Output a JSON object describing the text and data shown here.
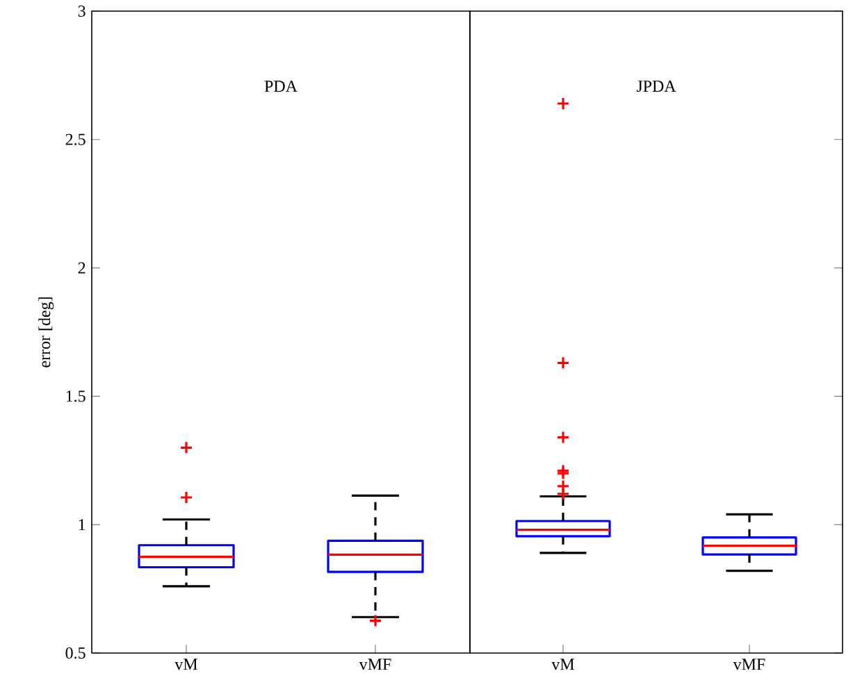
{
  "chart_data": [
    {
      "type": "box",
      "title": "PDA",
      "ylabel": "error [deg]",
      "categories": [
        "vM",
        "vMF"
      ],
      "color": "#0000ff",
      "ylim": [
        0.5,
        3
      ],
      "yticks": [
        0.5,
        1,
        1.5,
        2,
        2.5,
        3
      ],
      "boxes": [
        {
          "low": 0.76,
          "q1": 0.834,
          "median": 0.875,
          "q3": 0.92,
          "high": 1.02,
          "outliers": [
            1.3,
            1.106
          ]
        },
        {
          "low": 0.64,
          "q1": 0.816,
          "median": 0.883,
          "q3": 0.937,
          "high": 1.113,
          "outliers": [
            0.626
          ]
        }
      ]
    },
    {
      "type": "box",
      "title": "JPDA",
      "categories": [
        "vM",
        "vMF"
      ],
      "color": "#0000ff",
      "ylim": [
        0.5,
        3
      ],
      "yticks": [
        0.5,
        1,
        1.5,
        2,
        2.5,
        3
      ],
      "tick_labels": "x",
      "boxes": [
        {
          "low": 0.89,
          "q1": 0.955,
          "median": 0.98,
          "q3": 1.014,
          "high": 1.11,
          "outliers": [
            2.64,
            1.63,
            1.34,
            1.21,
            1.2,
            1.15,
            1.12
          ]
        },
        {
          "low": 0.82,
          "q1": 0.884,
          "median": 0.918,
          "q3": 0.95,
          "high": 1.04
        }
      ]
    }
  ]
}
